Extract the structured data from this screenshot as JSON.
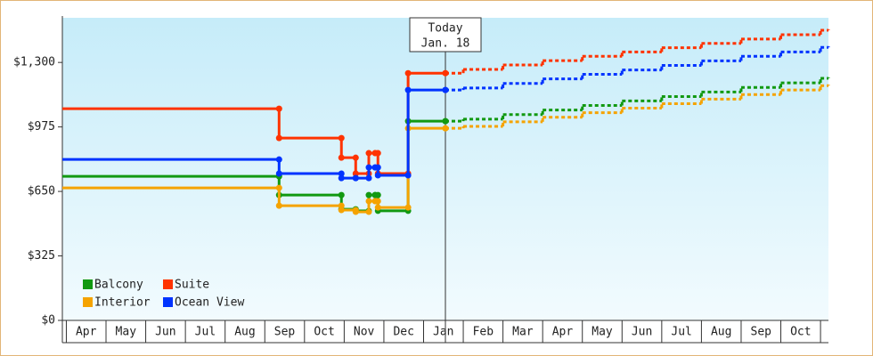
{
  "chart_data": {
    "type": "step-line",
    "x": [
      -0.1,
      5.36,
      6.93,
      7.29,
      7.62,
      7.78,
      7.85,
      8.61,
      9.55,
      10,
      11,
      12,
      13,
      14,
      15,
      16,
      17,
      18,
      19,
      19.2
    ],
    "series": [
      {
        "name": "Balcony",
        "color": "#119911",
        "values": [
          726,
          632,
          560,
          552,
          632,
          632,
          552,
          1004,
          1004,
          1014,
          1037,
          1060,
          1083,
          1106,
          1128,
          1151,
          1174,
          1197,
          1220,
          1224
        ]
      },
      {
        "name": "Suite",
        "color": "#ff3300",
        "values": [
          1067,
          919,
          820,
          740,
          843,
          843,
          740,
          1246,
          1246,
          1265,
          1287,
          1309,
          1331,
          1353,
          1374,
          1396,
          1418,
          1440,
          1462,
          1466
        ]
      },
      {
        "name": "Interior",
        "color": "#f5a300",
        "values": [
          668,
          578,
          556,
          547,
          601,
          601,
          569,
          968,
          968,
          978,
          1001,
          1024,
          1047,
          1070,
          1092,
          1115,
          1138,
          1161,
          1183,
          1188
        ]
      },
      {
        "name": "Ocean View",
        "color": "#0033ff",
        "values": [
          811,
          740,
          717,
          717,
          771,
          771,
          731,
          1161,
          1161,
          1171,
          1194,
          1217,
          1240,
          1262,
          1285,
          1308,
          1331,
          1353,
          1376,
          1381
        ]
      }
    ],
    "xlim": [
      -0.1,
      19.2
    ],
    "xticks": [
      {
        "value": 0.5,
        "label": "Apr"
      },
      {
        "value": 1.5,
        "label": "May"
      },
      {
        "value": 2.5,
        "label": "Jun"
      },
      {
        "value": 3.5,
        "label": "Jul"
      },
      {
        "value": 4.5,
        "label": "Aug"
      },
      {
        "value": 5.5,
        "label": "Sep"
      },
      {
        "value": 6.5,
        "label": "Oct"
      },
      {
        "value": 7.5,
        "label": "Nov"
      },
      {
        "value": 8.5,
        "label": "Dec"
      },
      {
        "value": 9.5,
        "label": "Jan"
      },
      {
        "value": 10.5,
        "label": "Feb"
      },
      {
        "value": 11.5,
        "label": "Mar"
      },
      {
        "value": 12.5,
        "label": "Apr"
      },
      {
        "value": 13.5,
        "label": "May"
      },
      {
        "value": 14.5,
        "label": "Jun"
      },
      {
        "value": 15.5,
        "label": "Jul"
      },
      {
        "value": 16.5,
        "label": "Aug"
      },
      {
        "value": 17.5,
        "label": "Sep"
      },
      {
        "value": 18.5,
        "label": "Oct"
      }
    ],
    "ylim": [
      0,
      1525
    ],
    "yticks": [
      {
        "value": 0,
        "label": "$0"
      },
      {
        "value": 325,
        "label": "$325"
      },
      {
        "value": 650,
        "label": "$650"
      },
      {
        "value": 975,
        "label": "$975"
      },
      {
        "value": 1300,
        "label": "$1,300"
      }
    ],
    "annotation": {
      "x": 9.55,
      "lines": [
        "Today",
        "Jan. 18"
      ]
    },
    "legend": "bottom-left"
  }
}
